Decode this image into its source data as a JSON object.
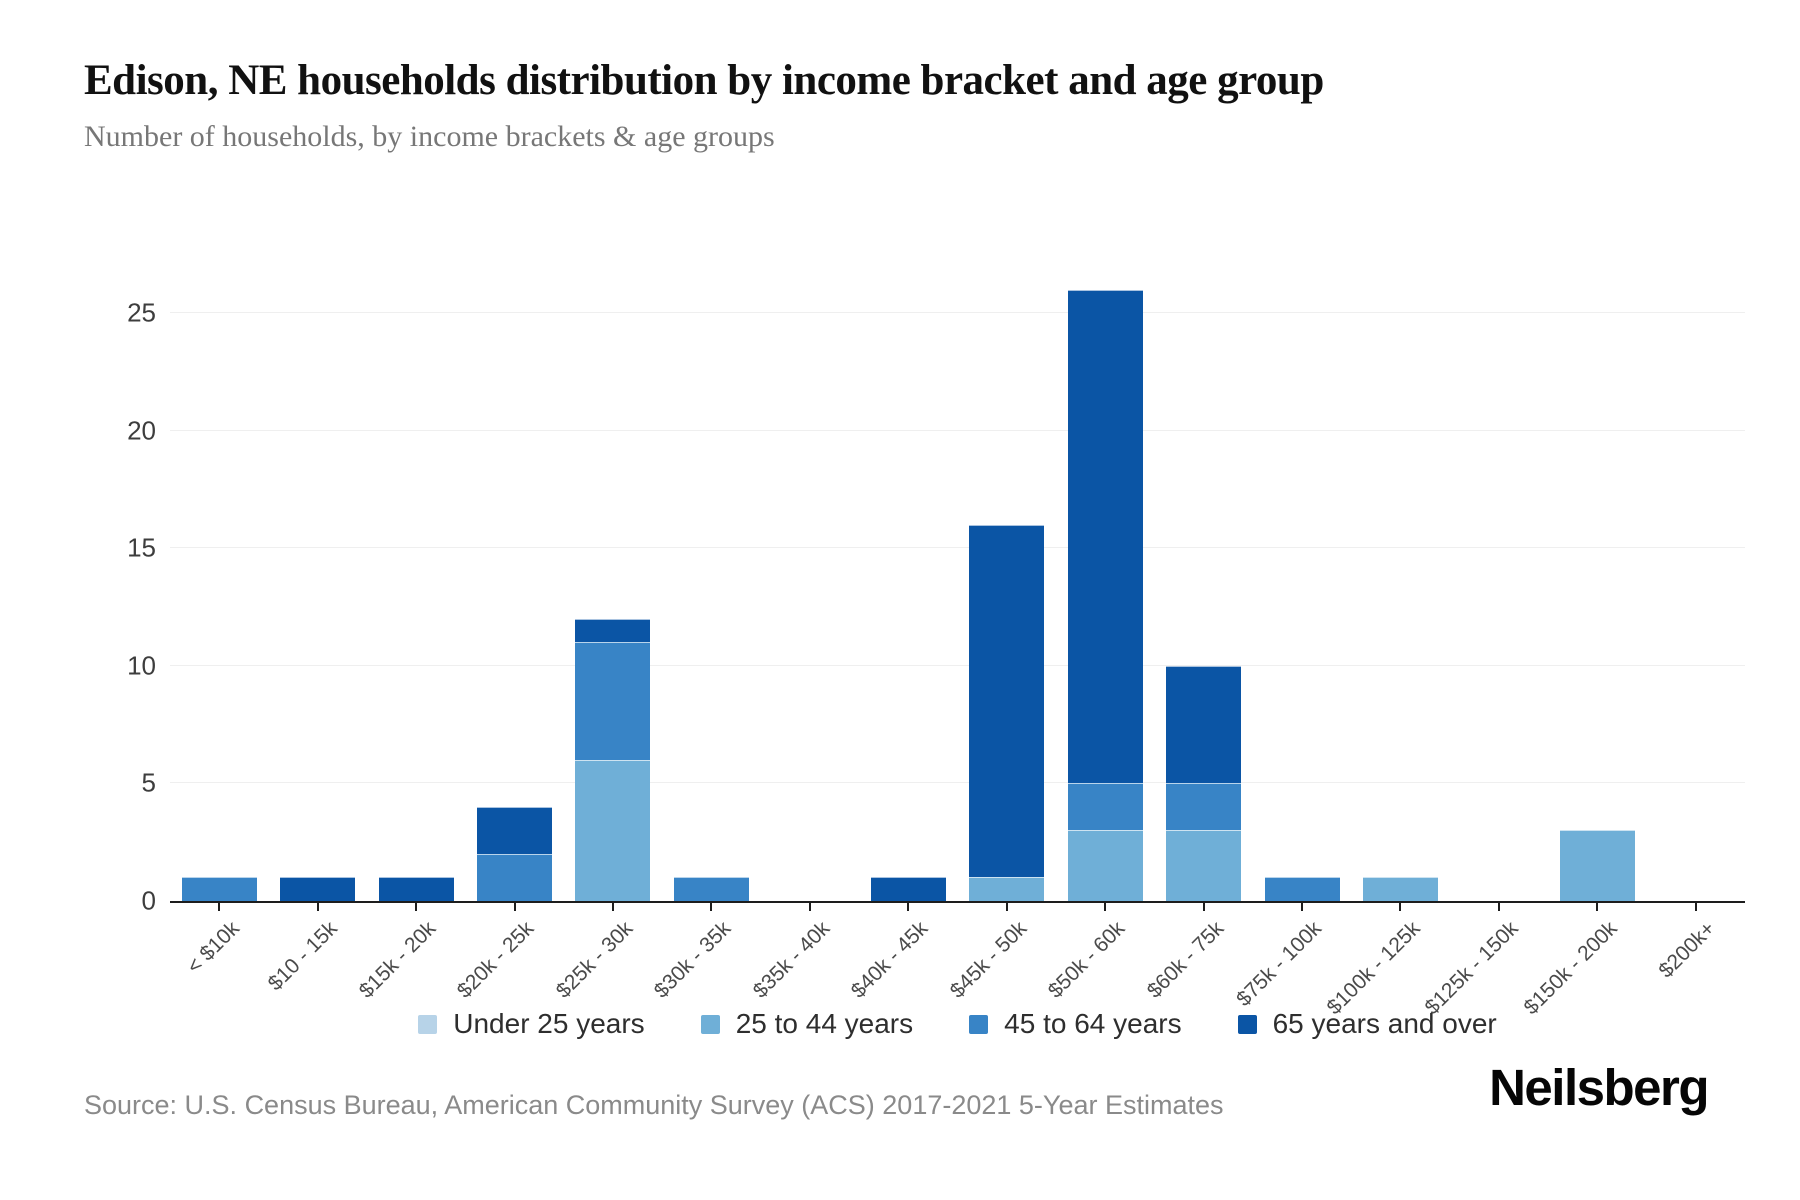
{
  "page": {
    "title": "Edison, NE households distribution by income bracket and age group",
    "subtitle": "Number of households, by income brackets & age groups",
    "source": "Source: U.S. Census Bureau, American Community Survey (ACS) 2017-2021 5-Year Estimates",
    "brand": "Neilsberg"
  },
  "chart_data": {
    "type": "bar",
    "stacked": true,
    "title": "Edison, NE households distribution by income bracket and age group",
    "subtitle": "Number of households, by income brackets & age groups",
    "xlabel": "",
    "ylabel": "Number of households",
    "ylim": [
      0,
      26
    ],
    "yticks": [
      0,
      5,
      10,
      15,
      20,
      25
    ],
    "grid": true,
    "legend_position": "bottom",
    "categories": [
      "< $10k",
      "$10 - 15k",
      "$15k - 20k",
      "$20k - 25k",
      "$25k - 30k",
      "$30k - 35k",
      "$35k - 40k",
      "$40k - 45k",
      "$45k - 50k",
      "$50k - 60k",
      "$60k - 75k",
      "$75k - 100k",
      "$100k - 125k",
      "$125k - 150k",
      "$150k - 200k",
      "$200k+"
    ],
    "series": [
      {
        "name": "Under 25 years",
        "color": "#b7d3e8",
        "values": [
          0,
          0,
          0,
          0,
          0,
          0,
          0,
          0,
          0,
          0,
          0,
          0,
          0,
          0,
          0,
          0
        ]
      },
      {
        "name": "25 to 44 years",
        "color": "#6fafd7",
        "values": [
          0,
          0,
          0,
          0,
          6,
          0,
          0,
          0,
          1,
          3,
          3,
          0,
          1,
          0,
          3,
          0
        ]
      },
      {
        "name": "45 to 64 years",
        "color": "#3884c6",
        "values": [
          1,
          0,
          0,
          2,
          5,
          1,
          0,
          0,
          0,
          2,
          2,
          1,
          0,
          0,
          0,
          0
        ]
      },
      {
        "name": "65 years and over",
        "color": "#0b55a5",
        "values": [
          0,
          1,
          1,
          2,
          1,
          0,
          0,
          1,
          15,
          21,
          5,
          0,
          0,
          0,
          0,
          0
        ]
      }
    ],
    "totals": [
      1,
      1,
      1,
      4,
      12,
      1,
      0,
      1,
      16,
      26,
      10,
      1,
      1,
      0,
      3,
      0
    ]
  }
}
